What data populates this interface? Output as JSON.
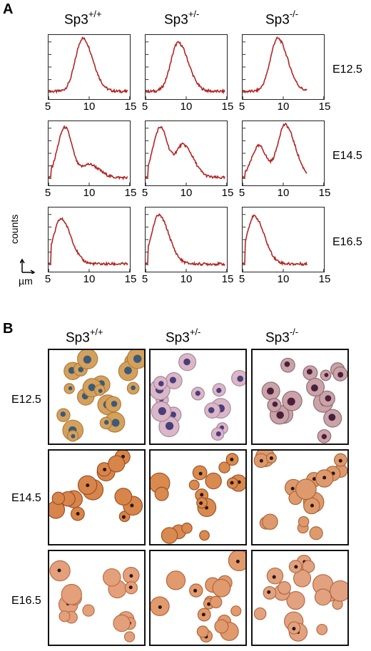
{
  "panel_a": {
    "letter": "A"
  },
  "panel_b": {
    "letter": "B"
  },
  "genotypes": [
    {
      "base": "Sp3",
      "sup": "+/+"
    },
    {
      "base": "Sp3",
      "sup": "+/-"
    },
    {
      "base": "Sp3",
      "sup": "-/-"
    }
  ],
  "stages": [
    "E12.5",
    "E14.5",
    "E16.5"
  ],
  "x_tick_labels": [
    "5",
    "10",
    "15"
  ],
  "axis_legend": {
    "y": "counts",
    "x": "µm"
  },
  "colors": {
    "trace": "#b22222"
  },
  "chart_data": {
    "type": "line",
    "xlabel": "µm",
    "ylabel": "counts",
    "xlim": [
      5,
      15
    ],
    "panels": [
      {
        "row": "E12.5",
        "col": "Sp3+/+",
        "peaks": [
          {
            "x": 9.2,
            "y": 1.0
          }
        ],
        "shape": "unimodal"
      },
      {
        "row": "E12.5",
        "col": "Sp3+/-",
        "peaks": [
          {
            "x": 9.0,
            "y": 0.92
          }
        ],
        "shape": "unimodal"
      },
      {
        "row": "E12.5",
        "col": "Sp3-/-",
        "peaks": [
          {
            "x": 9.3,
            "y": 1.0
          }
        ],
        "shape": "unimodal"
      },
      {
        "row": "E14.5",
        "col": "Sp3+/+",
        "peaks": [
          {
            "x": 7.0,
            "y": 0.95
          },
          {
            "x": 10.0,
            "y": 0.25
          }
        ],
        "shape": "bimodal"
      },
      {
        "row": "E14.5",
        "col": "Sp3+/-",
        "peaks": [
          {
            "x": 6.8,
            "y": 0.95
          },
          {
            "x": 9.6,
            "y": 0.62
          }
        ],
        "shape": "bimodal"
      },
      {
        "row": "E14.5",
        "col": "Sp3-/-",
        "peaks": [
          {
            "x": 7.0,
            "y": 0.6
          },
          {
            "x": 10.2,
            "y": 1.0
          }
        ],
        "shape": "bimodal"
      },
      {
        "row": "E16.5",
        "col": "Sp3+/+",
        "peaks": [
          {
            "x": 6.5,
            "y": 0.85
          }
        ],
        "shape": "unimodal"
      },
      {
        "row": "E16.5",
        "col": "Sp3+/-",
        "peaks": [
          {
            "x": 6.6,
            "y": 0.92
          }
        ],
        "shape": "unimodal"
      },
      {
        "row": "E16.5",
        "col": "Sp3-/-",
        "peaks": [
          {
            "x": 6.4,
            "y": 0.9
          }
        ],
        "shape": "unimodal"
      }
    ]
  }
}
